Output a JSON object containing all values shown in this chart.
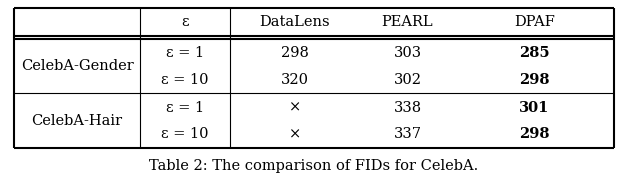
{
  "title": "Table 2: The comparison of FIDs for CelebA.",
  "col_headers": [
    "ε",
    "DataLens",
    "PEARL",
    "DPAF"
  ],
  "row_group_labels": [
    "CelebA-Gender",
    "CelebA-Hair"
  ],
  "rows": [
    [
      "ε = 1",
      "298",
      "303",
      "285"
    ],
    [
      "ε = 10",
      "320",
      "302",
      "298"
    ],
    [
      "ε = 1",
      "×",
      "338",
      "301"
    ],
    [
      "ε = 10",
      "×",
      "337",
      "298"
    ]
  ],
  "dpaf_bold": [
    true,
    true,
    true,
    true
  ],
  "background_color": "#ffffff",
  "font_size": 10.5,
  "title_font_size": 10.5
}
